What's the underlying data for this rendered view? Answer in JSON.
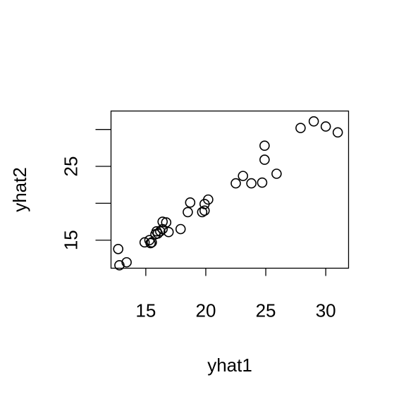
{
  "chart_data": {
    "type": "scatter",
    "title": "",
    "xlabel": "yhat1",
    "ylabel": "yhat2",
    "xlim": [
      12.1,
      31.9
    ],
    "ylim": [
      11.2,
      32.5
    ],
    "xticks": [
      15,
      20,
      25,
      30
    ],
    "yticks": [
      15,
      20,
      25,
      30
    ],
    "ytick_labels": [
      "15",
      "",
      "25",
      ""
    ],
    "grid": false,
    "legend": "none",
    "point_style": "open-circle",
    "series": [
      {
        "x": [
          12.7,
          12.8,
          13.4,
          14.9,
          15.3,
          15.4,
          15.5,
          15.8,
          15.9,
          16.0,
          16.2,
          16.4,
          16.4,
          16.7,
          16.9,
          17.9,
          18.5,
          18.7,
          19.7,
          19.9,
          19.9,
          20.2,
          22.5,
          23.1,
          23.8,
          24.7,
          24.9,
          24.9,
          25.9,
          27.9,
          29.0,
          30.0,
          31.0
        ],
        "y": [
          13.8,
          11.6,
          12.0,
          14.7,
          15.0,
          14.6,
          14.7,
          15.8,
          16.2,
          15.9,
          16.2,
          16.5,
          17.5,
          17.4,
          16.1,
          16.5,
          18.8,
          20.1,
          18.8,
          19.0,
          19.9,
          20.5,
          22.7,
          23.7,
          22.7,
          22.8,
          25.9,
          27.8,
          24.0,
          30.2,
          31.1,
          30.4,
          29.6
        ]
      }
    ]
  }
}
